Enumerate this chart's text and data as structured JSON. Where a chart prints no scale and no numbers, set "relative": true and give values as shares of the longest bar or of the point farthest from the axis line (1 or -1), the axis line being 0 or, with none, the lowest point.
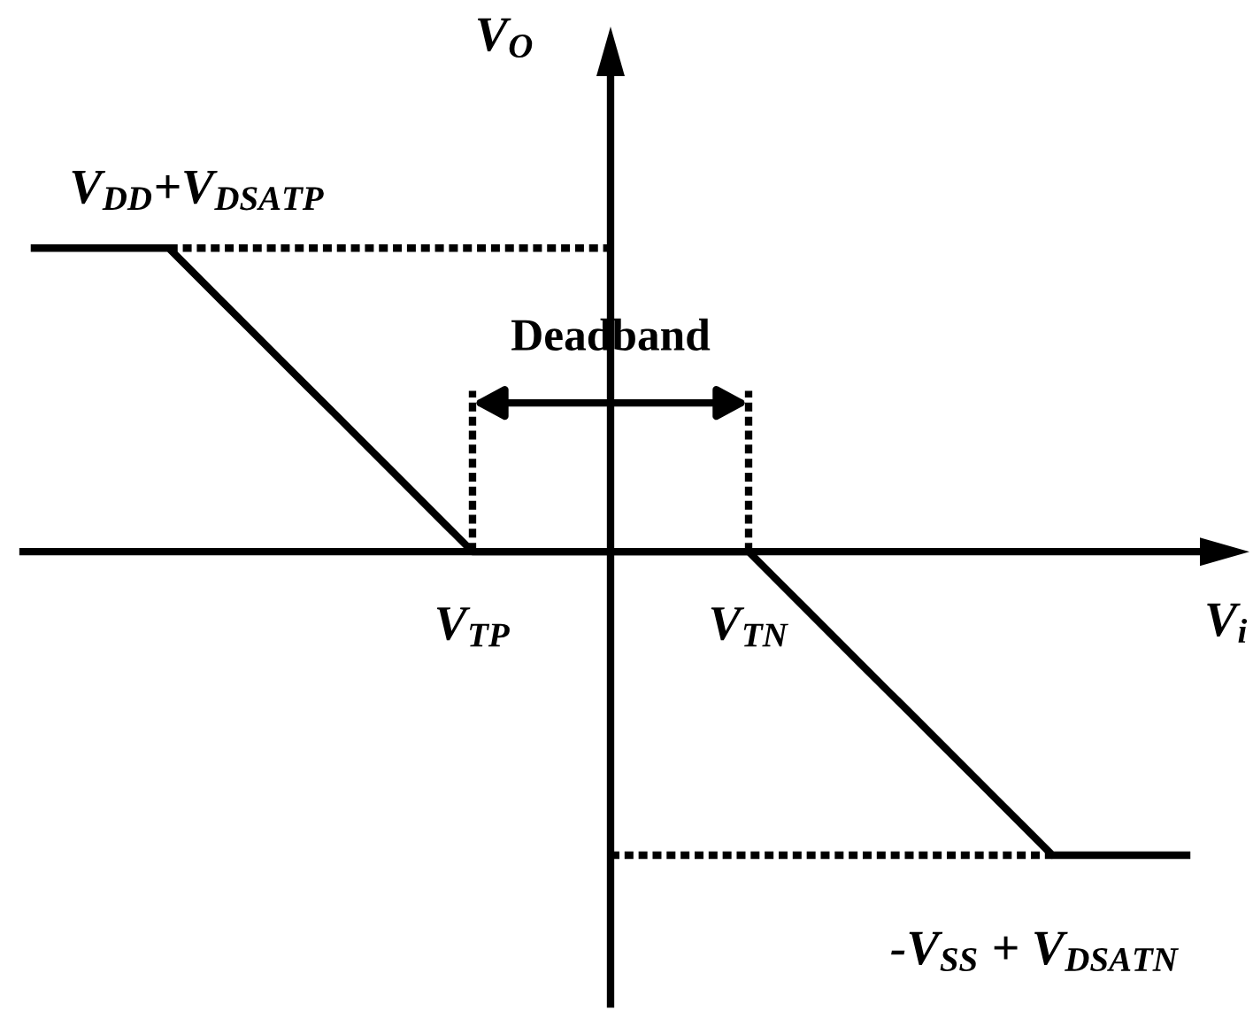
{
  "chart_data": {
    "type": "line",
    "relative": true,
    "xlabel": "V$_{i}$",
    "ylabel": "V$_{O}$",
    "categories": [
      null,
      null,
      null,
      null,
      null,
      null,
      null,
      null,
      null,
      null,
      null,
      null,
      null,
      null,
      null,
      null,
      "V$_{TP}$",
      null,
      null,
      null,
      null,
      null,
      null,
      null,
      null,
      null,
      "V$_{TN}$",
      null,
      null,
      null,
      null,
      null,
      null,
      null,
      null,
      null,
      null,
      null,
      null,
      null,
      null,
      null,
      null
    ],
    "tick_labels": "x",
    "series": [
      {
        "color": "#000000",
        "values": [
          1,
          1,
          1,
          1,
          1,
          1,
          0.909,
          0.818,
          0.727,
          0.636,
          0.545,
          0.455,
          0.364,
          0.273,
          0.182,
          0.091,
          0,
          0,
          0,
          0,
          0,
          0,
          0,
          0,
          0,
          0,
          0,
          -0.091,
          -0.182,
          -0.273,
          -0.364,
          -0.455,
          -0.545,
          -0.636,
          -0.727,
          -0.818,
          -0.909,
          -1,
          -1,
          -1,
          -1,
          -1,
          -1
        ]
      },
      {
        "color": "#000000",
        "line_style": "dotted",
        "values": [
          null,
          null,
          null,
          null,
          null,
          1,
          1,
          1,
          1,
          1,
          1,
          1,
          1,
          1,
          1,
          1,
          1,
          1,
          1,
          1,
          1,
          1,
          null,
          null,
          null,
          null,
          null,
          null,
          null,
          null,
          null,
          null,
          null,
          null,
          null,
          null,
          null,
          null,
          null,
          null,
          null,
          null,
          null
        ]
      },
      {
        "color": "#000000",
        "line_style": "dotted",
        "values": [
          null,
          null,
          null,
          null,
          null,
          null,
          null,
          null,
          null,
          null,
          null,
          null,
          null,
          null,
          null,
          null,
          null,
          null,
          null,
          null,
          null,
          -1,
          -1,
          -1,
          -1,
          -1,
          -1,
          -1,
          -1,
          -1,
          -1,
          -1,
          -1,
          -1,
          -1,
          -1,
          -1,
          -1,
          null,
          null,
          null,
          null,
          null
        ]
      }
    ],
    "annotations": [
      {
        "text": "V$_{DD}$+V$_{DSATP}$",
        "y": 1
      },
      "Deadband",
      {
        "text": "-V$_{SS}$ + V$_{DSATN}$",
        "y": -1
      }
    ]
  }
}
